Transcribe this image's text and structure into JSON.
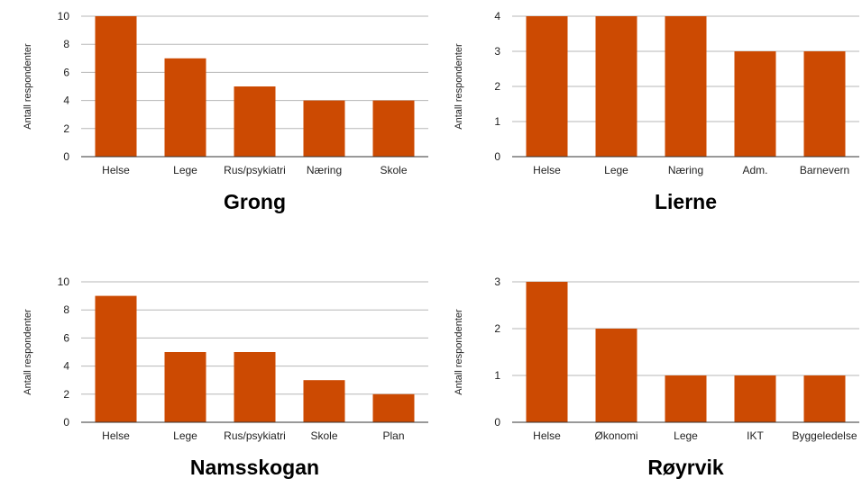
{
  "chart_data": [
    {
      "type": "bar",
      "title": "Grong",
      "ylabel": "Antall respondenter",
      "xlabel": "",
      "categories": [
        "Helse",
        "Lege",
        "Rus/psykiatri",
        "Næring",
        "Skole"
      ],
      "values": [
        10,
        7,
        5,
        4,
        4
      ],
      "ylim": [
        0,
        10
      ],
      "yticks": [
        "0",
        "2",
        "4",
        "6",
        "8",
        "10"
      ],
      "grid": true,
      "color": "#cc4a02"
    },
    {
      "type": "bar",
      "title": "Lierne",
      "ylabel": "Antall respondenter",
      "xlabel": "",
      "categories": [
        "Helse",
        "Lege",
        "Næring",
        "Adm.",
        "Barnevern"
      ],
      "values": [
        4,
        4,
        4,
        3,
        3
      ],
      "ylim": [
        0,
        4
      ],
      "yticks": [
        "0",
        "1",
        "2",
        "3",
        "4"
      ],
      "grid": true,
      "color": "#cc4a02"
    },
    {
      "type": "bar",
      "title": "Namsskogan",
      "ylabel": "Antall respondenter",
      "xlabel": "",
      "categories": [
        "Helse",
        "Lege",
        "Rus/psykiatri",
        "Skole",
        "Plan"
      ],
      "values": [
        9,
        5,
        5,
        3,
        2
      ],
      "ylim": [
        0,
        10
      ],
      "yticks": [
        "0",
        "2",
        "4",
        "6",
        "8",
        "10"
      ],
      "grid": true,
      "color": "#cc4a02"
    },
    {
      "type": "bar",
      "title": "Røyrvik",
      "ylabel": "Antall respondenter",
      "xlabel": "",
      "categories": [
        "Helse",
        "Økonomi",
        "Lege",
        "IKT",
        "Byggeledelse"
      ],
      "values": [
        3,
        2,
        1,
        1,
        1
      ],
      "ylim": [
        0,
        3
      ],
      "yticks": [
        "0",
        "1",
        "2",
        "3"
      ],
      "grid": true,
      "color": "#cc4a02"
    }
  ]
}
